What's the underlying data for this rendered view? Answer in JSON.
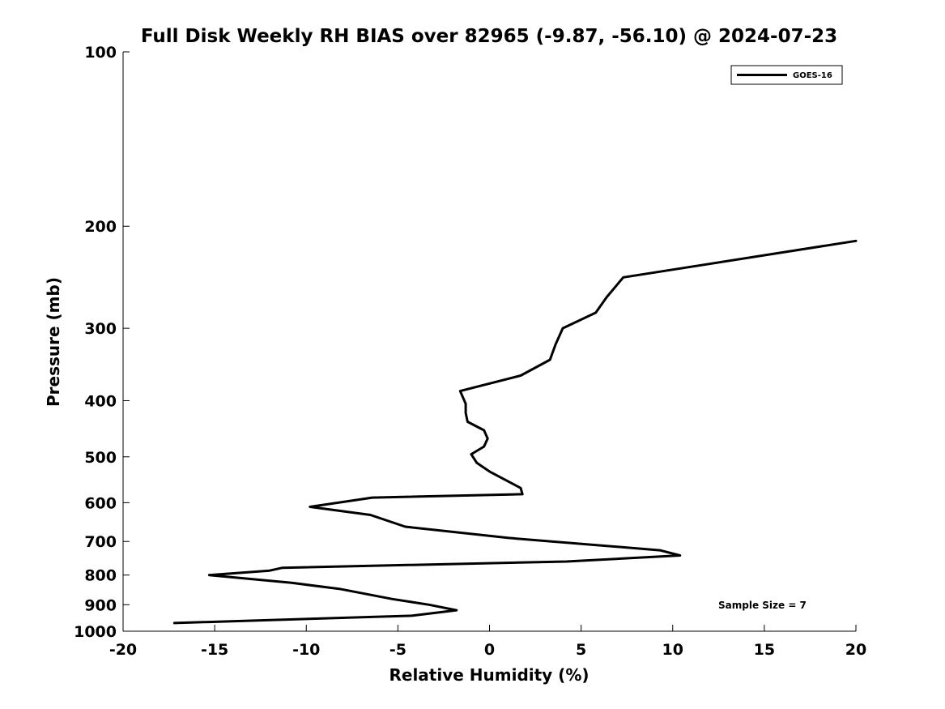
{
  "chart_data": {
    "type": "line",
    "title": "Full Disk Weekly RH BIAS over 82965 (-9.87, -56.10) @ 2024-07-23",
    "xlabel": "Relative Humidity (%)",
    "ylabel": "Pressure (mb)",
    "xlim": [
      -20,
      20
    ],
    "ylim": [
      100,
      1000
    ],
    "y_scale": "log",
    "y_reversed": true,
    "x_ticks": [
      -20,
      -15,
      -10,
      -5,
      0,
      5,
      10,
      15,
      20
    ],
    "x_tick_labels": [
      "-20",
      "-15",
      "-10",
      "-5",
      "0",
      "5",
      "10",
      "15",
      "20"
    ],
    "y_ticks": [
      100,
      200,
      300,
      400,
      500,
      600,
      700,
      800,
      900,
      1000
    ],
    "y_tick_labels": [
      "100",
      "200",
      "300",
      "400",
      "500",
      "600",
      "700",
      "800",
      "900",
      "1000"
    ],
    "grid": false,
    "legend_position": "top-right",
    "series": [
      {
        "name": "GOES-16",
        "color": "#000000",
        "x": [
          20.0,
          7.3,
          6.4,
          5.8,
          4.0,
          3.6,
          3.3,
          1.7,
          -1.6,
          -1.3,
          -1.3,
          -1.2,
          -0.3,
          -0.1,
          -0.3,
          -1.0,
          -0.7,
          0.0,
          1.7,
          1.8,
          -6.4,
          -9.8,
          -6.5,
          -4.6,
          1.0,
          9.3,
          10.4,
          4.2,
          -11.3,
          -12.0,
          -15.3,
          -10.8,
          -8.2,
          -5.3,
          -3.3,
          -1.8,
          -4.2,
          -17.2
        ],
        "y": [
          212,
          245,
          265,
          282,
          300,
          320,
          340,
          362,
          385,
          405,
          420,
          435,
          450,
          465,
          480,
          495,
          512,
          530,
          566,
          580,
          588,
          610,
          630,
          660,
          690,
          725,
          740,
          758,
          777,
          786,
          800,
          825,
          845,
          880,
          900,
          920,
          940,
          968
        ]
      }
    ],
    "annotation": "Sample Size = 7"
  }
}
